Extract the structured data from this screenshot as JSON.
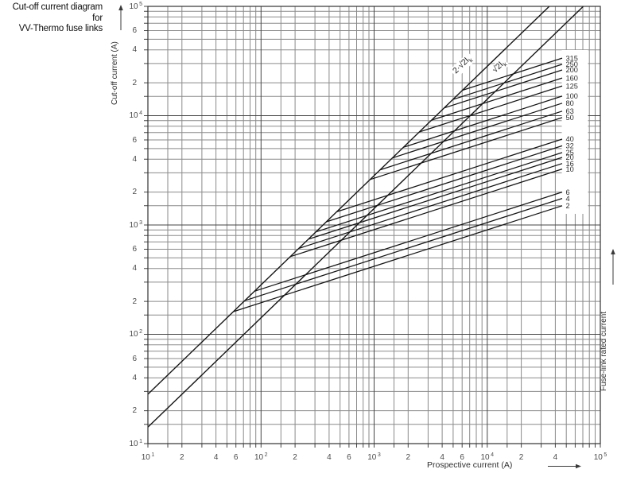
{
  "title": {
    "line1": "Cut-off current diagram for",
    "line2": "VV-Thermo fuse links"
  },
  "axes": {
    "x_label": "Prospective current (A)",
    "y_label": "Cut-off current (A)",
    "right_label": "Fuse-link rated current",
    "x_ticks": [
      {
        "log": 1.0,
        "base": "10",
        "sup": "1"
      },
      {
        "log": 1.30103,
        "base": "2"
      },
      {
        "log": 1.60206,
        "base": "4"
      },
      {
        "log": 1.77815,
        "base": "6"
      },
      {
        "log": 2.0,
        "base": "10",
        "sup": "2"
      },
      {
        "log": 2.30103,
        "base": "2"
      },
      {
        "log": 2.60206,
        "base": "4"
      },
      {
        "log": 2.77815,
        "base": "6"
      },
      {
        "log": 3.0,
        "base": "10",
        "sup": "3"
      },
      {
        "log": 3.30103,
        "base": "2"
      },
      {
        "log": 3.60206,
        "base": "4"
      },
      {
        "log": 3.77815,
        "base": "6"
      },
      {
        "log": 4.0,
        "base": "10",
        "sup": "4"
      },
      {
        "log": 4.30103,
        "base": "2"
      },
      {
        "log": 4.60206,
        "base": "4"
      },
      {
        "log": 5.0,
        "base": "10",
        "sup": "5"
      }
    ],
    "y_ticks": [
      {
        "log": 1.0,
        "base": "10",
        "sup": "1"
      },
      {
        "log": 1.30103,
        "base": "2"
      },
      {
        "log": 1.60206,
        "base": "4"
      },
      {
        "log": 1.77815,
        "base": "6"
      },
      {
        "log": 2.0,
        "base": "10",
        "sup": "2"
      },
      {
        "log": 2.30103,
        "base": "2"
      },
      {
        "log": 2.60206,
        "base": "4"
      },
      {
        "log": 2.77815,
        "base": "6"
      },
      {
        "log": 3.0,
        "base": "10",
        "sup": "3"
      },
      {
        "log": 3.30103,
        "base": "2"
      },
      {
        "log": 3.60206,
        "base": "4"
      },
      {
        "log": 3.77815,
        "base": "6"
      },
      {
        "log": 4.0,
        "base": "10",
        "sup": "4"
      },
      {
        "log": 4.30103,
        "base": "2"
      },
      {
        "log": 4.60206,
        "base": "4"
      },
      {
        "log": 4.77815,
        "base": "6"
      },
      {
        "log": 5.0,
        "base": "10",
        "sup": "5"
      }
    ]
  },
  "chart_data": {
    "type": "line",
    "x_scale": "log",
    "y_scale": "log",
    "x_range": [
      10,
      100000
    ],
    "y_range": [
      10,
      100000
    ],
    "xlabel": "Prospective current (A)",
    "ylabel": "Cut-off current (A)",
    "grid": "on",
    "grid_multipliers": [
      1,
      1.5,
      2,
      3,
      4,
      5,
      6,
      7,
      8,
      9
    ],
    "envelope_lines": [
      {
        "label_base": "2·√2I",
        "label_sub": "k",
        "factor": 2.8284
      },
      {
        "label_base": "√2I",
        "label_sub": "k",
        "factor": 1.4142
      }
    ],
    "fuse_lines": {
      "slope_log": 0.33333,
      "branch_from_factor": 2.8284,
      "end_prospective_a": 46000,
      "series": [
        {
          "rating": "315",
          "cutoff_end_a": 33600
        },
        {
          "rating": "250",
          "cutoff_end_a": 29500
        },
        {
          "rating": "200",
          "cutoff_end_a": 26200
        },
        {
          "rating": "160",
          "cutoff_end_a": 22100
        },
        {
          "rating": "125",
          "cutoff_end_a": 18700
        },
        {
          "rating": "100",
          "cutoff_end_a": 15100
        },
        {
          "rating": "80",
          "cutoff_end_a": 13000
        },
        {
          "rating": "63",
          "cutoff_end_a": 11000
        },
        {
          "rating": "50",
          "cutoff_end_a": 9600
        },
        {
          "rating": "40",
          "cutoff_end_a": 6100
        },
        {
          "rating": "32",
          "cutoff_end_a": 5300
        },
        {
          "rating": "25",
          "cutoff_end_a": 4600
        },
        {
          "rating": "20",
          "cutoff_end_a": 4150
        },
        {
          "rating": "16",
          "cutoff_end_a": 3650
        },
        {
          "rating": "10",
          "cutoff_end_a": 3250
        },
        {
          "rating": "6",
          "cutoff_end_a": 2000
        },
        {
          "rating": "4",
          "cutoff_end_a": 1750
        },
        {
          "rating": "2",
          "cutoff_end_a": 1500
        }
      ]
    }
  },
  "colors": {
    "background": "#ffffff",
    "grid_minor": "#8a8a8a",
    "grid_major": "#454545",
    "curve": "#141414",
    "tick_text": "#4a4a4a",
    "title_text": "#0d0d0d"
  }
}
